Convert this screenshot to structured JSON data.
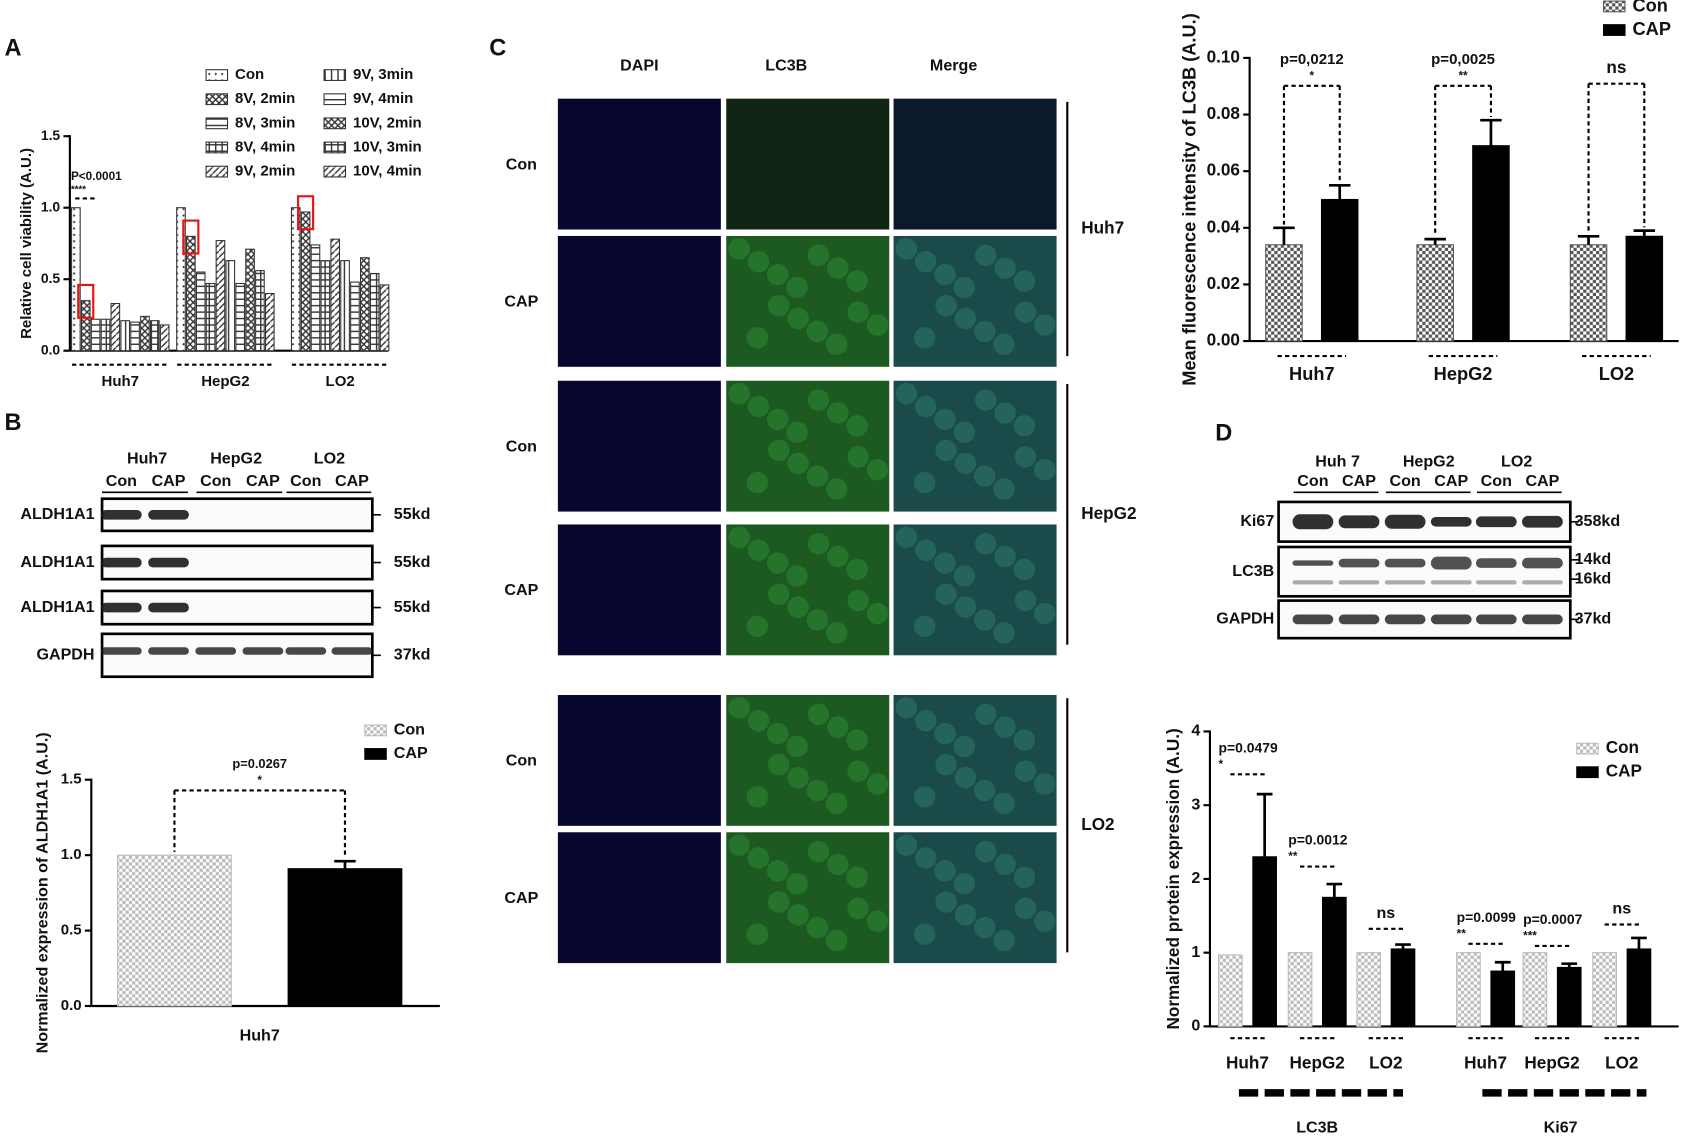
{
  "panel_labels": [
    "A",
    "B",
    "C",
    "D"
  ],
  "chart_data": [
    {
      "type": "bar",
      "y_label": "Relative cell viability (A.U.)",
      "categories": [
        "Huh7",
        "HepG2",
        "LO2"
      ],
      "series": [
        {
          "name": "Con",
          "color": "#333333",
          "values": [
            1.0,
            1.0,
            1.0
          ]
        },
        {
          "name": "8V, 2min",
          "color": "#333333",
          "values": [
            0.35,
            0.8,
            0.97
          ]
        },
        {
          "name": "8V, 3min",
          "color": "#333333",
          "values": [
            0.22,
            0.55,
            0.74
          ]
        },
        {
          "name": "8V, 4min",
          "color": "#333333",
          "values": [
            0.22,
            0.47,
            0.63
          ]
        },
        {
          "name": "9V, 2min",
          "color": "#333333",
          "values": [
            0.33,
            0.77,
            0.78
          ]
        },
        {
          "name": "9V, 3min",
          "color": "#333333",
          "values": [
            0.21,
            0.63,
            0.63
          ]
        },
        {
          "name": "9V, 4min",
          "color": "#333333",
          "values": [
            0.2,
            0.47,
            0.48
          ]
        },
        {
          "name": "10V, 2min",
          "color": "#333333",
          "values": [
            0.24,
            0.71,
            0.65
          ]
        },
        {
          "name": "10V, 3min",
          "color": "#333333",
          "values": [
            0.21,
            0.56,
            0.54
          ]
        },
        {
          "name": "10V, 4min",
          "color": "#333333",
          "values": [
            0.18,
            0.4,
            0.46
          ]
        }
      ],
      "ylim": [
        0,
        1.5
      ],
      "yticks": [
        {
          "value": 0,
          "label": "0.0"
        },
        0.5,
        {
          "value": 1,
          "label": "1.0"
        },
        1.5
      ],
      "annotations": [
        {
          "label": "P<0.0001",
          "stars": "****"
        }
      ]
    },
    {
      "type": "bar",
      "y_label": "Normalized expression of ALDH1A1 (A.U.)",
      "categories": [
        "Huh7"
      ],
      "series": [
        {
          "name": "Con",
          "color": "#bbbbbb",
          "values": [
            1.0
          ]
        },
        {
          "name": "CAP",
          "color": "#000000",
          "values": [
            0.91
          ],
          "errors": [
            0.05
          ]
        }
      ],
      "ylim": [
        0,
        1.5
      ],
      "yticks": [
        {
          "value": 0,
          "label": "0.0"
        },
        0.5,
        {
          "value": 1,
          "label": "1.0"
        },
        1.5
      ],
      "annotations": [
        {
          "label": "p=0.0267",
          "stars": "*"
        }
      ]
    },
    {
      "type": "bar",
      "y_label": "Mean fluorescence intensity of LC3B (A.U.)",
      "categories": [
        "Huh7",
        "HepG2",
        "LO2"
      ],
      "series": [
        {
          "name": "Con",
          "color": "#555555",
          "values": [
            0.034,
            0.034,
            0.034
          ],
          "errors": [
            0.006,
            0.002,
            0.003
          ]
        },
        {
          "name": "CAP",
          "color": "#000000",
          "values": [
            0.05,
            0.069,
            0.037
          ],
          "errors": [
            0.005,
            0.009,
            0.002
          ]
        }
      ],
      "ylim": [
        0,
        0.1
      ],
      "yticks": [
        {
          "value": 0,
          "label": "0.00"
        },
        {
          "value": 0.02,
          "label": "0.02"
        },
        {
          "value": 0.04,
          "label": "0.04"
        },
        {
          "value": 0.06,
          "label": "0.06"
        },
        {
          "value": 0.08,
          "label": "0.08"
        },
        {
          "value": 0.1,
          "label": "0.10"
        }
      ],
      "annotations": [
        {
          "label": "p=0,0212",
          "stars": "*"
        },
        {
          "label": "p=0,0025",
          "stars": "**"
        },
        {
          "label": "ns"
        }
      ]
    },
    {
      "type": "bar",
      "y_label": "Normalized protein expression (A.U.)",
      "categories": [
        "Huh7",
        "HepG2",
        "LO2",
        "Huh7",
        "HepG2",
        "LO2"
      ],
      "group_labels": [
        "LC3B",
        "Ki67"
      ],
      "series": [
        {
          "name": "Con",
          "color": "#bbbbbb",
          "values": [
            0.97,
            1.0,
            1.0,
            1.0,
            1.0,
            1.0
          ]
        },
        {
          "name": "CAP",
          "color": "#000000",
          "values": [
            2.3,
            1.75,
            1.05,
            0.75,
            0.8,
            1.05
          ],
          "errors": [
            0.85,
            0.18,
            0.06,
            0.12,
            0.05,
            0.15
          ]
        }
      ],
      "ylim": [
        0,
        4
      ],
      "yticks": [
        0,
        1,
        2,
        3,
        4
      ],
      "annotations": [
        {
          "label": "p=0.0479",
          "stars": "*"
        },
        {
          "label": "p=0.0012",
          "stars": "**"
        },
        {
          "label": "ns"
        },
        {
          "label": "p=0.0099",
          "stars": "**"
        },
        {
          "label": "p=0.0007",
          "stars": "***"
        },
        {
          "label": "ns"
        }
      ]
    }
  ],
  "blot_b": {
    "lane_groups": [
      "Huh7",
      "HepG2",
      "LO2"
    ],
    "lanes": [
      "Con",
      "CAP",
      "Con",
      "CAP",
      "Con",
      "CAP"
    ],
    "rows": [
      {
        "label": "ALDH1A1",
        "size": "55kd"
      },
      {
        "label": "ALDH1A1",
        "size": "55kd"
      },
      {
        "label": "ALDH1A1",
        "size": "55kd"
      },
      {
        "label": "GAPDH",
        "size": "37kd"
      }
    ]
  },
  "microscopy": {
    "columns": [
      "DAPI",
      "LC3B",
      "Merge"
    ],
    "groups": [
      {
        "label": "Huh7",
        "rows": [
          "Con",
          "CAP"
        ]
      },
      {
        "label": "HepG2",
        "rows": [
          "Con",
          "CAP"
        ]
      },
      {
        "label": "LO2",
        "rows": [
          "Con",
          "CAP"
        ]
      }
    ]
  },
  "blot_d": {
    "lane_groups": [
      "Huh 7",
      "HepG2",
      "LO2"
    ],
    "lanes": [
      "Con",
      "CAP",
      "Con",
      "CAP",
      "Con",
      "CAP"
    ],
    "rows": [
      {
        "label": "Ki67",
        "sizes": [
          "358kd"
        ]
      },
      {
        "label": "LC3B",
        "sizes": [
          "14kd",
          "16kd"
        ]
      },
      {
        "label": "GAPDH",
        "sizes": [
          "37kd"
        ]
      }
    ]
  }
}
